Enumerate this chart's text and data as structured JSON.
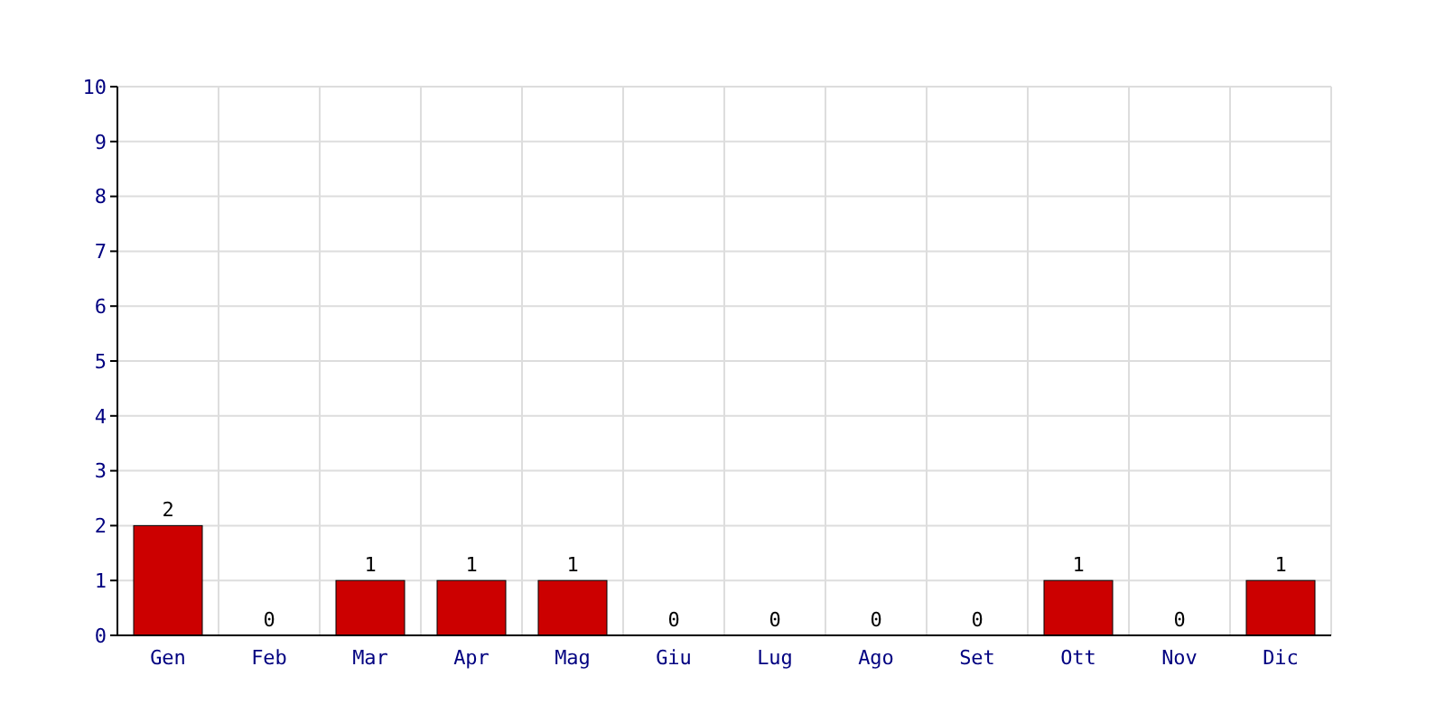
{
  "chart_data": {
    "type": "bar",
    "categories": [
      "Gen",
      "Feb",
      "Mar",
      "Apr",
      "Mag",
      "Giu",
      "Lug",
      "Ago",
      "Set",
      "Ott",
      "Nov",
      "Dic"
    ],
    "values": [
      2,
      0,
      1,
      1,
      1,
      0,
      0,
      0,
      0,
      1,
      0,
      1
    ],
    "color": "#cc0000",
    "ylim": [
      0,
      10
    ],
    "yticks": [
      0,
      1,
      2,
      3,
      4,
      5,
      6,
      7,
      8,
      9,
      10
    ],
    "grid": true,
    "data_labels": true
  }
}
